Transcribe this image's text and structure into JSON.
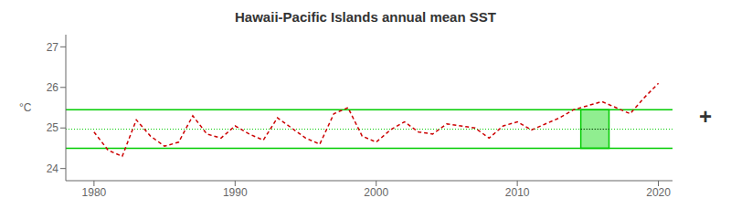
{
  "chart_data": {
    "type": "line",
    "title": "Hawaii-Pacific Islands annual mean SST",
    "y_label": "°C",
    "x": [
      1980,
      1981,
      1982,
      1983,
      1984,
      1985,
      1986,
      1987,
      1988,
      1989,
      1990,
      1991,
      1992,
      1993,
      1994,
      1995,
      1996,
      1997,
      1998,
      1999,
      2000,
      2001,
      2002,
      2003,
      2004,
      2005,
      2006,
      2007,
      2008,
      2009,
      2010,
      2011,
      2012,
      2013,
      2014,
      2015,
      2016,
      2017,
      2018,
      2019,
      2020
    ],
    "values": [
      24.9,
      24.45,
      24.3,
      25.2,
      24.8,
      24.55,
      24.65,
      25.3,
      24.85,
      24.75,
      25.05,
      24.85,
      24.7,
      25.25,
      25.0,
      24.75,
      24.6,
      25.35,
      25.5,
      24.8,
      24.65,
      24.95,
      25.15,
      24.9,
      24.85,
      25.1,
      25.05,
      25.0,
      24.75,
      25.05,
      25.15,
      24.95,
      25.1,
      25.25,
      25.45,
      25.55,
      25.65,
      25.5,
      25.35,
      25.75,
      26.1
    ],
    "color": "#cc0000",
    "line_style": "dashed",
    "upper_bound": 25.45,
    "lower_bound": 24.5,
    "dotted_line": 24.97,
    "bound_color": "#00cc00",
    "forecast_start": 2014.5,
    "forecast_end": 2016.5,
    "forecast_fill_color": "#90ee90",
    "forecast_line_color": "#000000",
    "xlim": [
      1978,
      2021
    ],
    "xticks": [
      1980,
      1990,
      2000,
      2010,
      2020
    ],
    "ylim": [
      23.7,
      27.3
    ],
    "yticks": [
      24,
      25,
      26,
      27
    ],
    "grid": false,
    "annotations": [
      "+"
    ]
  }
}
